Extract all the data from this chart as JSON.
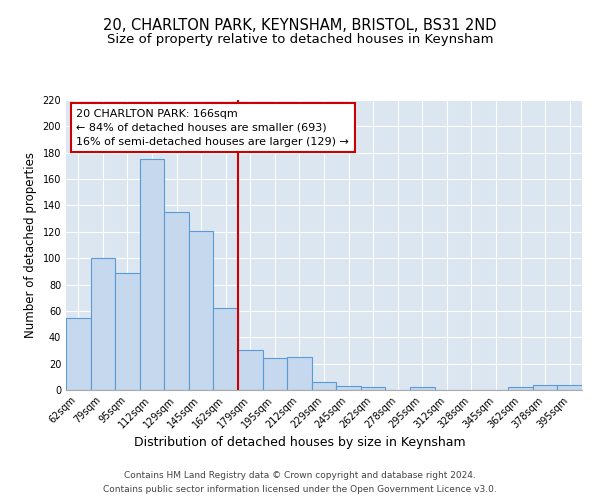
{
  "title": "20, CHARLTON PARK, KEYNSHAM, BRISTOL, BS31 2ND",
  "subtitle": "Size of property relative to detached houses in Keynsham",
  "xlabel": "Distribution of detached houses by size in Keynsham",
  "ylabel": "Number of detached properties",
  "bar_labels": [
    "62sqm",
    "79sqm",
    "95sqm",
    "112sqm",
    "129sqm",
    "145sqm",
    "162sqm",
    "179sqm",
    "195sqm",
    "212sqm",
    "229sqm",
    "245sqm",
    "262sqm",
    "278sqm",
    "295sqm",
    "312sqm",
    "328sqm",
    "345sqm",
    "362sqm",
    "378sqm",
    "395sqm"
  ],
  "bar_values": [
    55,
    100,
    89,
    175,
    135,
    121,
    62,
    30,
    24,
    25,
    6,
    3,
    2,
    0,
    2,
    0,
    0,
    0,
    2,
    4,
    4
  ],
  "bar_color": "#c5d8ee",
  "bar_edge_color": "#5b9bd5",
  "bg_color": "#dce6f1",
  "grid_color": "#ffffff",
  "vline_color": "#cc0000",
  "vline_index": 6,
  "annotation_title": "20 CHARLTON PARK: 166sqm",
  "annotation_line1": "← 84% of detached houses are smaller (693)",
  "annotation_line2": "16% of semi-detached houses are larger (129) →",
  "annotation_box_edge_color": "#cc0000",
  "ylim": [
    0,
    220
  ],
  "yticks": [
    0,
    20,
    40,
    60,
    80,
    100,
    120,
    140,
    160,
    180,
    200,
    220
  ],
  "footnote1": "Contains HM Land Registry data © Crown copyright and database right 2024.",
  "footnote2": "Contains public sector information licensed under the Open Government Licence v3.0.",
  "title_fontsize": 10.5,
  "subtitle_fontsize": 9.5,
  "xlabel_fontsize": 9,
  "ylabel_fontsize": 8.5,
  "tick_fontsize": 7,
  "annotation_fontsize": 8,
  "footnote_fontsize": 6.5
}
